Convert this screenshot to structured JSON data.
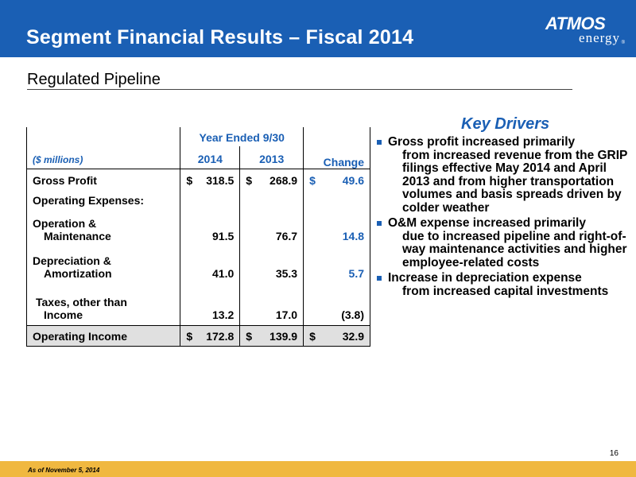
{
  "header": {
    "title": "Segment Financial Results – Fiscal 2014",
    "logo_main": "ATMOS",
    "logo_sub": "energy",
    "logo_reg": "®"
  },
  "section": {
    "title": "Regulated Pipeline"
  },
  "table": {
    "units": "($ millions)",
    "period_header": "Year Ended 9/30",
    "col_2014": "2014",
    "col_2013": "2013",
    "col_change": "Change",
    "rows": {
      "gross_profit": {
        "label": "Gross Profit",
        "cur": "$",
        "v2014": "318.5",
        "v2013": "268.9",
        "change": "49.6"
      },
      "opex": {
        "label": "Operating Expenses:"
      },
      "om": {
        "label_line1": "Operation &",
        "label_line2": "Maintenance",
        "v2014": "91.5",
        "v2013": "76.7",
        "change": "14.8"
      },
      "da": {
        "label_line1": "Depreciation &",
        "label_line2": "Amortization",
        "v2014": "41.0",
        "v2013": "35.3",
        "change": "5.7"
      },
      "taxes": {
        "label_line1": "Taxes, other than",
        "label_line2": "Income",
        "v2014": "13.2",
        "v2013": "17.0",
        "change": "(3.8)"
      },
      "operating_income": {
        "label": "Operating Income",
        "cur": "$",
        "v2014": "172.8",
        "v2013": "139.9",
        "change": "32.9"
      }
    }
  },
  "key_drivers": {
    "title": "Key Drivers",
    "items": [
      {
        "first": "Gross profit increased primarily",
        "rest": "from increased revenue from the GRIP filings effective May 2014 and April 2013 and from higher transportation volumes and basis spreads driven by colder weather"
      },
      {
        "first": "O&M expense increased primarily",
        "rest": "due to increased pipeline and right-of-way maintenance activities and higher employee-related costs"
      },
      {
        "first": "Increase in depreciation expense",
        "rest": "from increased capital investments"
      }
    ]
  },
  "page_number": "16",
  "footer": {
    "text": "As of November 5, 2014"
  },
  "colors": {
    "brand_blue": "#1a5fb4",
    "footer_gold": "#f0b840",
    "total_row_gray": "#e0e0e0"
  }
}
